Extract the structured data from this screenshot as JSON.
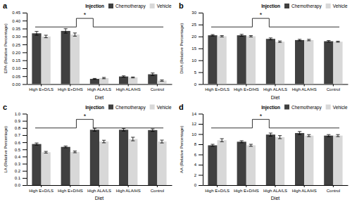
{
  "chart_data": [
    {
      "type": "bar",
      "title": "a",
      "categories": [
        "High E+D/LS",
        "High E+D/HS",
        "High ALA/LS",
        "High ALA/HS",
        "Control"
      ],
      "series": [
        {
          "name": "Chemotherapy",
          "color": "#404040",
          "values": [
            0.32,
            0.335,
            0.033,
            0.048,
            0.062
          ],
          "errors": [
            0.012,
            0.014,
            0.003,
            0.004,
            0.008
          ]
        },
        {
          "name": "Vehicle",
          "color": "#d8d8d8",
          "values": [
            0.3,
            0.312,
            0.038,
            0.042,
            0.022
          ],
          "errors": [
            0.008,
            0.01,
            0.004,
            0.003,
            0.004
          ]
        }
      ],
      "xlabel": "Diet",
      "ylabel": "EPA (Relative Percentage)",
      "ylim": [
        0,
        0.45
      ],
      "yticks": [
        {
          "value": 0,
          "label": "0.00"
        },
        0.05,
        {
          "value": 0.1,
          "label": "0.10"
        },
        0.15,
        {
          "value": 0.2,
          "label": "0.20"
        },
        0.25,
        {
          "value": 0.3,
          "label": "0.30"
        },
        0.35,
        {
          "value": 0.4,
          "label": "0.40"
        },
        0.45
      ],
      "legend": "upper right",
      "legend_title": "Injection",
      "annotations": [
        {
          "text": "*"
        }
      ]
    },
    {
      "type": "bar",
      "title": "b",
      "categories": [
        "High E+D/LS",
        "High E+D/HS",
        "High ALA/LS",
        "High ALA/HS",
        "Control"
      ],
      "series": [
        {
          "name": "Chemotherapy",
          "color": "#404040",
          "values": [
            20.5,
            20.5,
            19.0,
            18.5,
            18.0
          ],
          "errors": [
            0.3,
            0.4,
            0.4,
            0.3,
            0.3
          ]
        },
        {
          "name": "Vehicle",
          "color": "#d8d8d8",
          "values": [
            20.1,
            20.1,
            17.8,
            18.5,
            17.8
          ],
          "errors": [
            0.3,
            0.3,
            0.3,
            0.3,
            0.2
          ]
        }
      ],
      "xlabel": "Diet",
      "ylabel": "DHA (Relative Percentage)",
      "ylim": [
        0,
        30
      ],
      "yticks": [
        0,
        5,
        10,
        15,
        20,
        25,
        30
      ],
      "legend": "upper right",
      "legend_title": "Injection",
      "annotations": [
        {
          "text": "*"
        }
      ]
    },
    {
      "type": "bar",
      "title": "c",
      "categories": [
        "High E+D/LS",
        "High E+D/HS",
        "High ALA/LS",
        "High ALA/HS",
        "Control"
      ],
      "series": [
        {
          "name": "Chemotherapy",
          "color": "#404040",
          "values": [
            0.575,
            0.535,
            0.775,
            0.775,
            0.77
          ],
          "errors": [
            0.015,
            0.012,
            0.02,
            0.018,
            0.018
          ]
        },
        {
          "name": "Vehicle",
          "color": "#d8d8d8",
          "values": [
            0.46,
            0.465,
            0.61,
            0.645,
            0.61
          ],
          "errors": [
            0.012,
            0.012,
            0.018,
            0.025,
            0.02
          ]
        }
      ],
      "xlabel": "Diet",
      "ylabel": "LA (Relative Percentage)",
      "ylim": [
        0,
        1
      ],
      "yticks": [
        {
          "value": 0,
          "label": "0.0"
        },
        0.1,
        0.2,
        0.3,
        0.4,
        0.5,
        0.6,
        0.7,
        0.8,
        0.9,
        {
          "value": 1,
          "label": "1.0"
        }
      ],
      "legend": "upper right",
      "legend_title": "Injection",
      "annotations": [
        {
          "text": "*"
        }
      ]
    },
    {
      "type": "bar",
      "title": "d",
      "categories": [
        "High E+D/LS",
        "High E+D/HS",
        "High ALA/LS",
        "High ALA/HS",
        "Control"
      ],
      "series": [
        {
          "name": "Chemotherapy",
          "color": "#404040",
          "values": [
            7.8,
            8.5,
            9.9,
            10.2,
            9.7
          ],
          "errors": [
            0.2,
            0.2,
            0.3,
            0.3,
            0.2
          ]
        },
        {
          "name": "Vehicle",
          "color": "#d8d8d8",
          "values": [
            8.8,
            7.8,
            9.4,
            9.7,
            9.7
          ],
          "errors": [
            0.3,
            0.2,
            0.3,
            0.2,
            0.2
          ]
        }
      ],
      "xlabel": "Diet",
      "ylabel": "AA (Relative Percentage)",
      "ylim": [
        0,
        14
      ],
      "yticks": [
        0,
        2,
        4,
        6,
        8,
        10,
        12,
        14
      ],
      "legend": "upper right",
      "legend_title": "Injection",
      "annotations": [
        {
          "text": "*"
        }
      ]
    }
  ]
}
